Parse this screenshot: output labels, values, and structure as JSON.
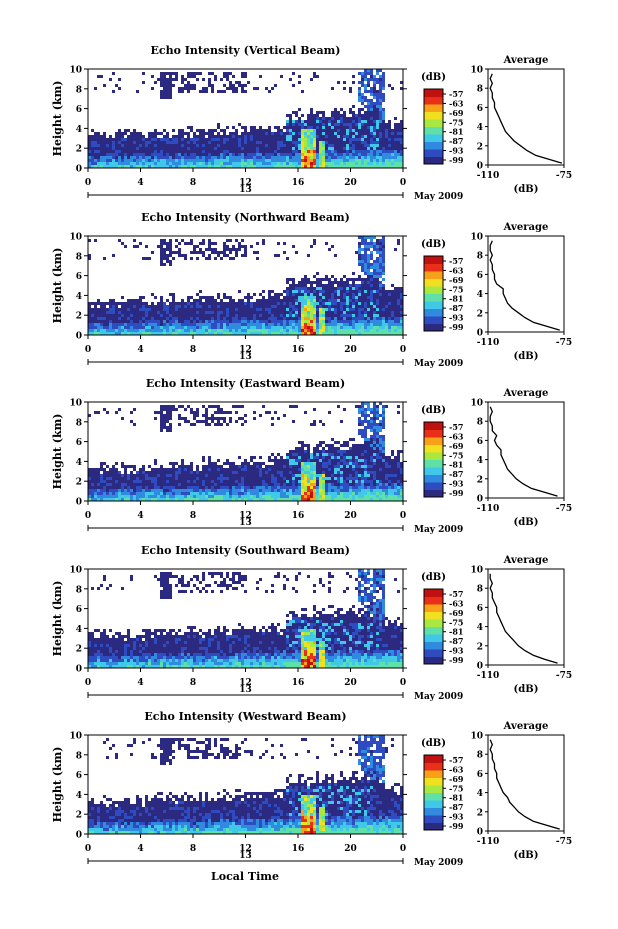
{
  "chart_data": [
    {
      "type": "heatmap",
      "title": "Echo Intensity (Vertical Beam)",
      "ylabel": "Height (km)",
      "y_ticks": [
        "0",
        "2",
        "4",
        "6",
        "8",
        "10"
      ],
      "ylim": [
        0,
        10
      ],
      "x_ticks": [
        "0",
        "4",
        "8",
        "12",
        "16",
        "20",
        "0"
      ],
      "xlim": [
        0,
        24
      ],
      "date_label": "13",
      "month_year": "May 2009",
      "colorbar": {
        "unit": "(dB)",
        "ticks": [
          "-57",
          "-63",
          "-69",
          "-75",
          "-81",
          "-87",
          "-93",
          "-99"
        ]
      },
      "average_profile": {
        "title": "Average",
        "xlabel": "(dB)",
        "x_ticks": [
          "-110",
          "-75"
        ],
        "y_ticks": [
          "0",
          "2",
          "4",
          "6",
          "8",
          "10"
        ],
        "xlim": [
          -110,
          -75
        ],
        "ylim": [
          0,
          10
        ],
        "height_km": [
          0.2,
          0.6,
          1.0,
          1.5,
          2.0,
          2.5,
          3.0,
          3.5,
          4.0,
          4.5,
          5.0,
          5.5,
          6.0,
          6.5,
          7.0,
          7.5,
          8.0,
          8.5,
          9.0,
          9.5
        ],
        "db": [
          -76,
          -82,
          -88,
          -92,
          -95,
          -98,
          -100,
          -102,
          -103,
          -104,
          -105,
          -106,
          -107,
          -107,
          -108,
          -108,
          -109,
          -108,
          -109,
          -108
        ]
      }
    },
    {
      "type": "heatmap",
      "title": "Echo Intensity (Northward Beam)",
      "ylabel": "Height (km)",
      "y_ticks": [
        "0",
        "2",
        "4",
        "6",
        "8",
        "10"
      ],
      "ylim": [
        0,
        10
      ],
      "x_ticks": [
        "0",
        "4",
        "8",
        "12",
        "16",
        "20",
        "0"
      ],
      "xlim": [
        0,
        24
      ],
      "date_label": "13",
      "month_year": "May 2009",
      "colorbar": {
        "unit": "(dB)",
        "ticks": [
          "-57",
          "-63",
          "-69",
          "-75",
          "-81",
          "-87",
          "-93",
          "-99"
        ]
      },
      "average_profile": {
        "title": "Average",
        "xlabel": "(dB)",
        "x_ticks": [
          "-110",
          "-75"
        ],
        "y_ticks": [
          "0",
          "2",
          "4",
          "6",
          "8",
          "10"
        ],
        "xlim": [
          -110,
          -75
        ],
        "ylim": [
          0,
          10
        ],
        "height_km": [
          0.2,
          0.6,
          1.0,
          1.5,
          2.0,
          2.5,
          3.0,
          3.5,
          4.0,
          4.5,
          5.0,
          5.5,
          6.0,
          6.5,
          7.0,
          7.5,
          8.0,
          8.5,
          9.0,
          9.5
        ],
        "db": [
          -77,
          -83,
          -89,
          -93,
          -96,
          -99,
          -101,
          -102,
          -103,
          -103,
          -106,
          -107,
          -107,
          -108,
          -108,
          -109,
          -108,
          -109,
          -109,
          -108
        ]
      }
    },
    {
      "type": "heatmap",
      "title": "Echo Intensity (Eastward Beam)",
      "ylabel": "Height (km)",
      "y_ticks": [
        "0",
        "2",
        "4",
        "6",
        "8",
        "10"
      ],
      "ylim": [
        0,
        10
      ],
      "x_ticks": [
        "0",
        "4",
        "8",
        "12",
        "16",
        "20",
        "0"
      ],
      "xlim": [
        0,
        24
      ],
      "date_label": "13",
      "month_year": "May 2009",
      "colorbar": {
        "unit": "(dB)",
        "ticks": [
          "-57",
          "-63",
          "-69",
          "-75",
          "-81",
          "-87",
          "-93",
          "-99"
        ]
      },
      "average_profile": {
        "title": "Average",
        "xlabel": "(dB)",
        "x_ticks": [
          "-110",
          "-75"
        ],
        "y_ticks": [
          "0",
          "2",
          "4",
          "6",
          "8",
          "10"
        ],
        "xlim": [
          -110,
          -75
        ],
        "ylim": [
          0,
          10
        ],
        "height_km": [
          0.2,
          0.6,
          1.0,
          1.5,
          2.0,
          2.5,
          3.0,
          3.5,
          4.0,
          4.5,
          5.0,
          5.5,
          6.0,
          6.5,
          7.0,
          7.5,
          8.0,
          8.5,
          9.0,
          9.5
        ],
        "db": [
          -78,
          -84,
          -90,
          -94,
          -97,
          -99,
          -101,
          -102,
          -103,
          -104,
          -104,
          -106,
          -107,
          -106,
          -108,
          -108,
          -109,
          -109,
          -108,
          -109
        ]
      }
    },
    {
      "type": "heatmap",
      "title": "Echo Intensity (Southward Beam)",
      "ylabel": "Height (km)",
      "y_ticks": [
        "0",
        "2",
        "4",
        "6",
        "8",
        "10"
      ],
      "ylim": [
        0,
        10
      ],
      "x_ticks": [
        "0",
        "4",
        "8",
        "12",
        "16",
        "20",
        "0"
      ],
      "xlim": [
        0,
        24
      ],
      "date_label": "13",
      "month_year": "May 2009",
      "colorbar": {
        "unit": "(dB)",
        "ticks": [
          "-57",
          "-63",
          "-69",
          "-75",
          "-81",
          "-87",
          "-93",
          "-99"
        ]
      },
      "average_profile": {
        "title": "Average",
        "xlabel": "(dB)",
        "x_ticks": [
          "-110",
          "-75"
        ],
        "y_ticks": [
          "0",
          "2",
          "4",
          "6",
          "8",
          "10"
        ],
        "xlim": [
          -110,
          -75
        ],
        "ylim": [
          0,
          10
        ],
        "height_km": [
          0.2,
          0.6,
          1.0,
          1.5,
          2.0,
          2.5,
          3.0,
          3.5,
          4.0,
          4.5,
          5.0,
          5.5,
          6.0,
          6.5,
          7.0,
          7.5,
          8.0,
          8.5,
          9.0,
          9.5
        ],
        "db": [
          -78,
          -84,
          -89,
          -93,
          -96,
          -98,
          -100,
          -102,
          -103,
          -104,
          -105,
          -106,
          -106,
          -107,
          -108,
          -108,
          -109,
          -108,
          -109,
          -109
        ]
      }
    },
    {
      "type": "heatmap",
      "title": "Echo Intensity (Westward Beam)",
      "ylabel": "Height (km)",
      "y_ticks": [
        "0",
        "2",
        "4",
        "6",
        "8",
        "10"
      ],
      "ylim": [
        0,
        10
      ],
      "x_ticks": [
        "0",
        "4",
        "8",
        "12",
        "16",
        "20",
        "0"
      ],
      "xlim": [
        0,
        24
      ],
      "date_label": "13",
      "month_year": "May 2009",
      "colorbar": {
        "unit": "(dB)",
        "ticks": [
          "-57",
          "-63",
          "-69",
          "-75",
          "-81",
          "-87",
          "-93",
          "-99"
        ]
      },
      "average_profile": {
        "title": "Average",
        "xlabel": "(dB)",
        "x_ticks": [
          "-110",
          "-75"
        ],
        "y_ticks": [
          "0",
          "2",
          "4",
          "6",
          "8",
          "10"
        ],
        "xlim": [
          -110,
          -75
        ],
        "ylim": [
          0,
          10
        ],
        "height_km": [
          0.2,
          0.6,
          1.0,
          1.5,
          2.0,
          2.5,
          3.0,
          3.5,
          4.0,
          4.5,
          5.0,
          5.5,
          6.0,
          6.5,
          7.0,
          7.5,
          8.0,
          8.5,
          9.0,
          9.5
        ],
        "db": [
          -77,
          -83,
          -89,
          -93,
          -96,
          -98,
          -100,
          -101,
          -103,
          -104,
          -105,
          -106,
          -106,
          -107,
          -107,
          -108,
          -108,
          -109,
          -108,
          -109
        ]
      }
    }
  ],
  "figure": {
    "xlabel": "Local Time"
  },
  "colors": {
    "colormap": [
      "#2b2a80",
      "#2e4bc0",
      "#2f8ae0",
      "#3fc8e8",
      "#5fe0a8",
      "#a8e840",
      "#f0e020",
      "#f8a018",
      "#e83018",
      "#c01010"
    ]
  }
}
